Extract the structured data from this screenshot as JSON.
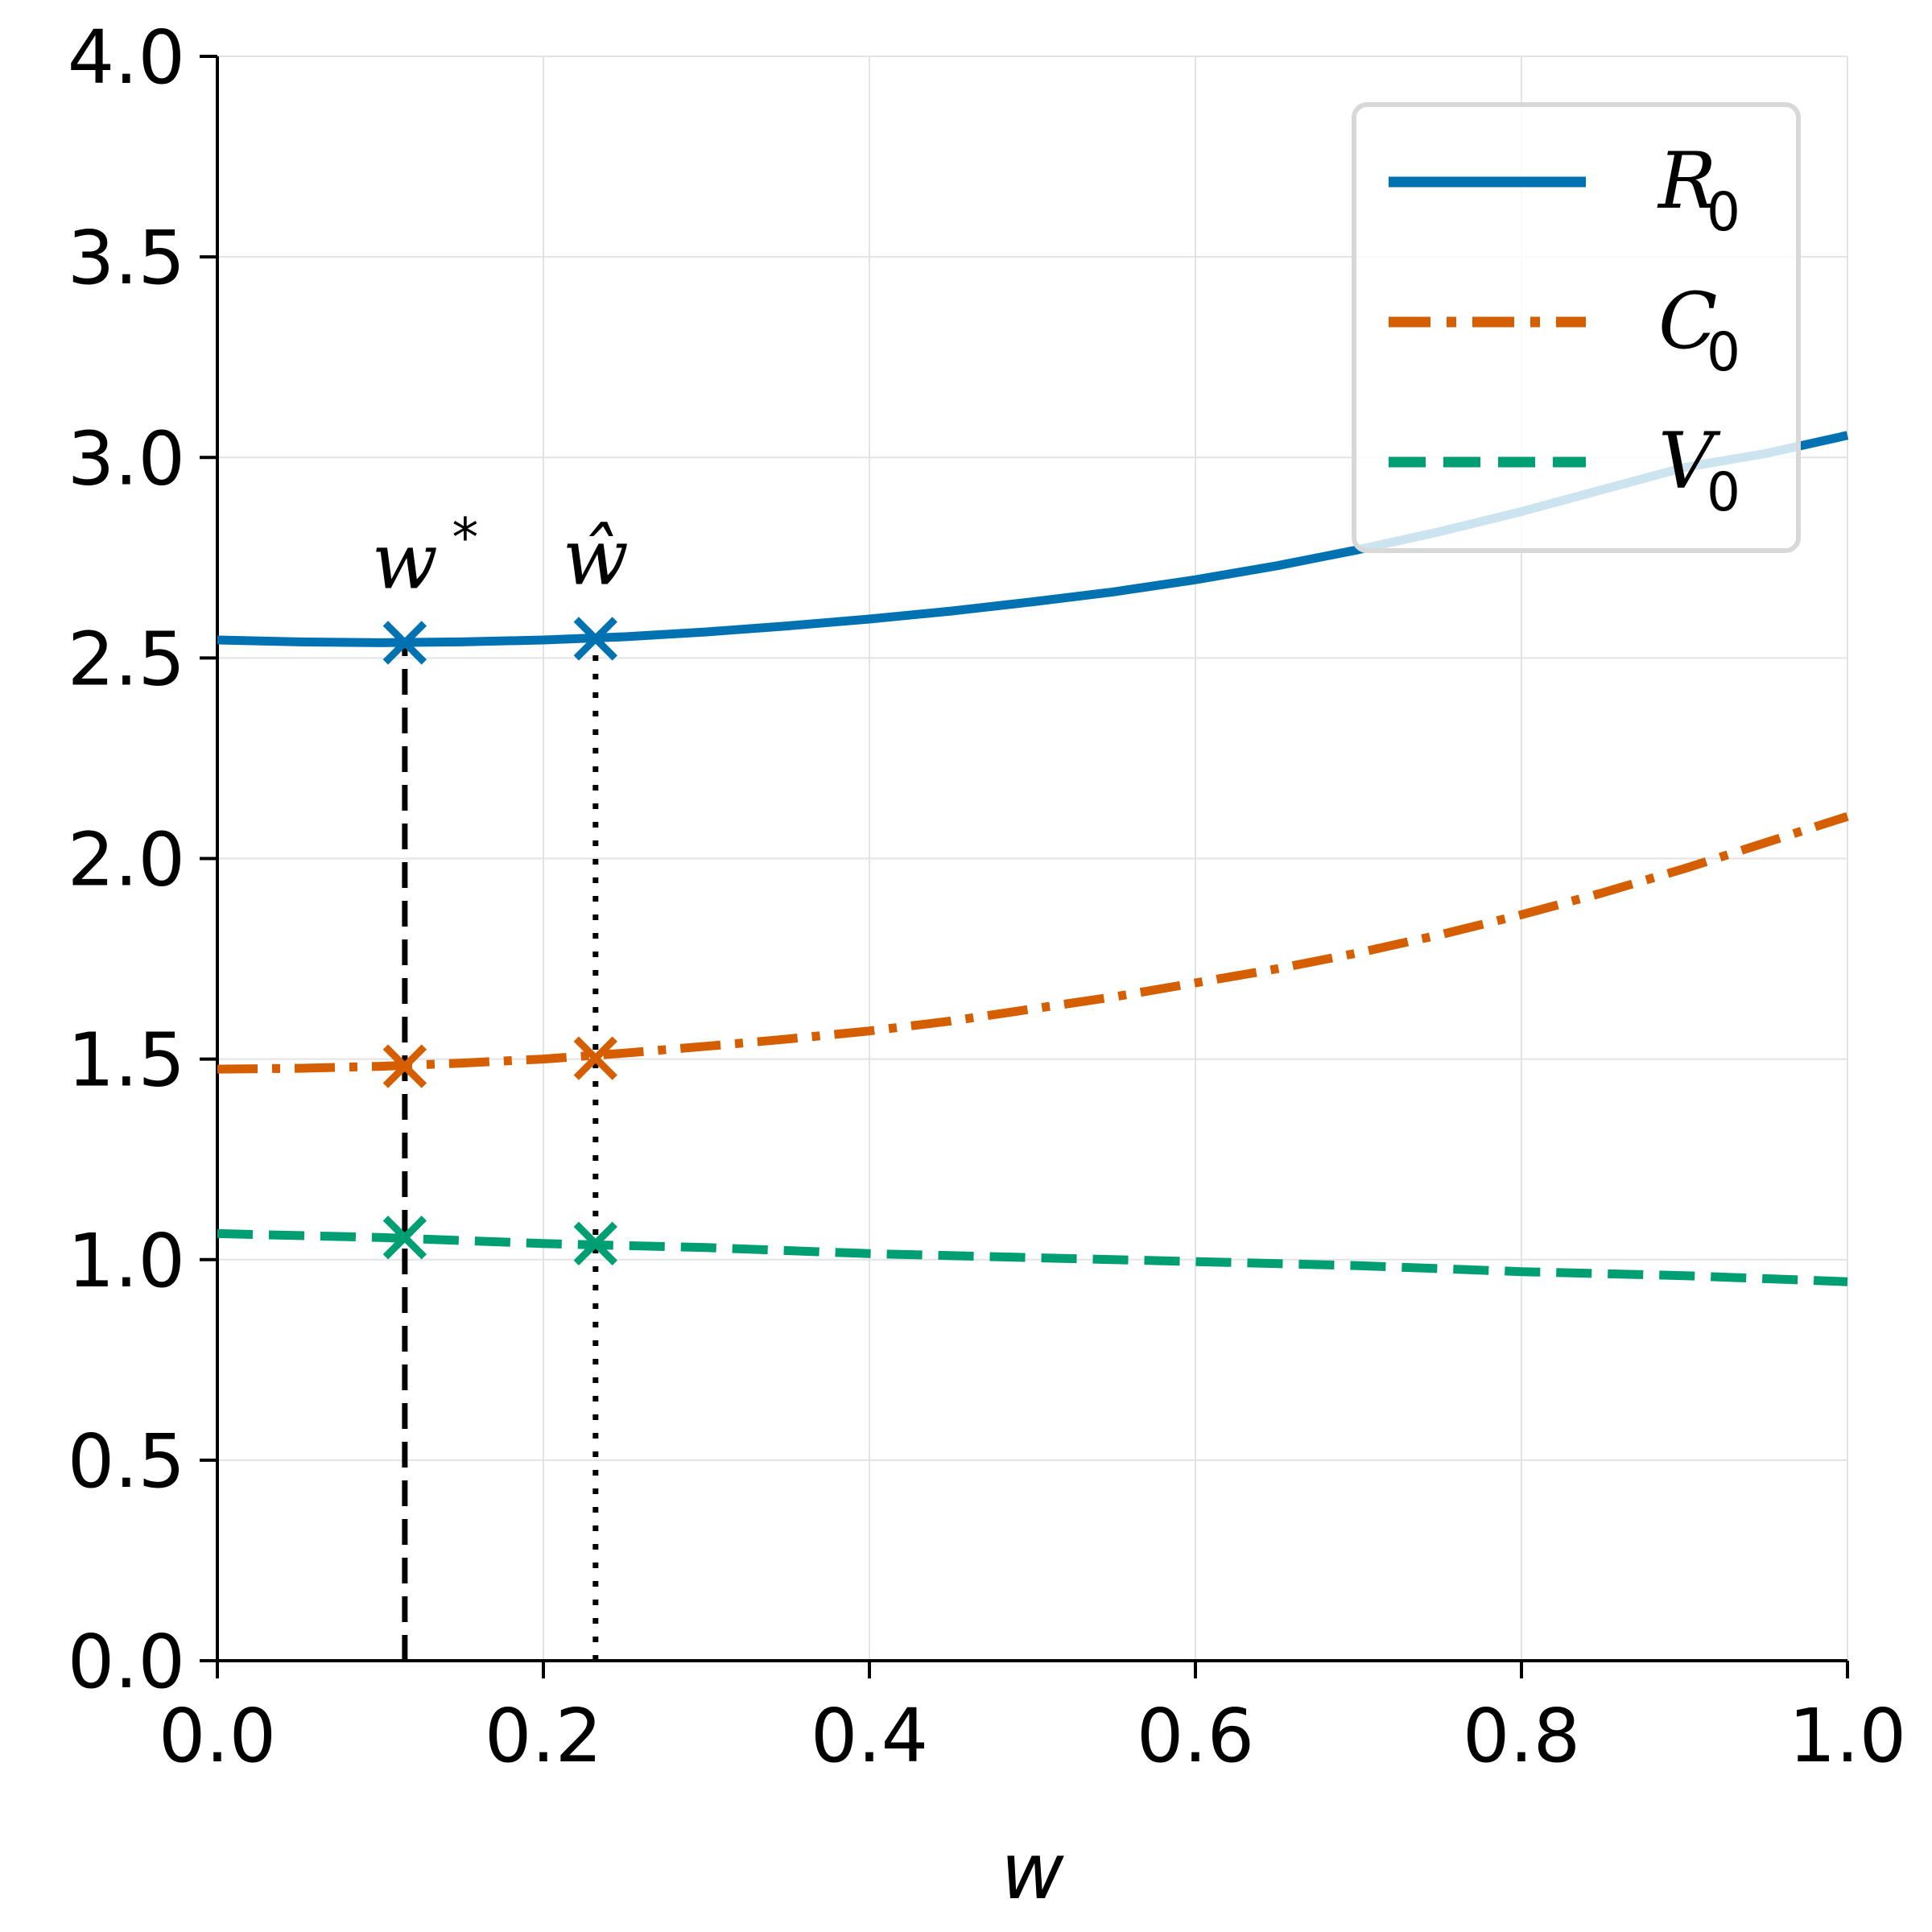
{
  "chart_data": {
    "type": "line",
    "xlabel": "w",
    "ylabel": "",
    "xlim": [
      0.0,
      1.0
    ],
    "ylim": [
      0.0,
      4.0
    ],
    "xticks": [
      "0.0",
      "0.2",
      "0.4",
      "0.6",
      "0.8",
      "1.0"
    ],
    "yticks": [
      "0.0",
      "0.5",
      "1.0",
      "1.5",
      "2.0",
      "2.5",
      "3.0",
      "3.5",
      "4.0"
    ],
    "grid": true,
    "legend_position": "top-right",
    "series": [
      {
        "name": "R",
        "subscript": "0",
        "style": "solid",
        "color": "#0072B2",
        "x": [
          0.0,
          0.05,
          0.1,
          0.15,
          0.2,
          0.25,
          0.3,
          0.35,
          0.4,
          0.45,
          0.5,
          0.55,
          0.6,
          0.65,
          0.7,
          0.75,
          0.8,
          0.85,
          0.9,
          0.95,
          1.0
        ],
        "y": [
          2.545,
          2.54,
          2.538,
          2.54,
          2.545,
          2.553,
          2.565,
          2.58,
          2.597,
          2.617,
          2.64,
          2.665,
          2.695,
          2.73,
          2.77,
          2.815,
          2.865,
          2.92,
          2.975,
          3.01,
          3.055
        ]
      },
      {
        "name": "C",
        "subscript": "0",
        "style": "dashdot",
        "color": "#D55E00",
        "x": [
          0.0,
          0.05,
          0.1,
          0.15,
          0.2,
          0.25,
          0.3,
          0.35,
          0.4,
          0.45,
          0.5,
          0.55,
          0.6,
          0.65,
          0.7,
          0.75,
          0.8,
          0.85,
          0.9,
          0.95,
          1.0
        ],
        "y": [
          1.475,
          1.477,
          1.482,
          1.49,
          1.5,
          1.515,
          1.532,
          1.55,
          1.57,
          1.595,
          1.625,
          1.655,
          1.69,
          1.725,
          1.765,
          1.81,
          1.86,
          1.915,
          1.975,
          2.04,
          2.105
        ]
      },
      {
        "name": "V",
        "subscript": "0",
        "style": "dashed",
        "color": "#009E73",
        "x": [
          0.0,
          0.1,
          0.2,
          0.3,
          0.4,
          0.5,
          0.6,
          0.7,
          0.8,
          0.9,
          1.0
        ],
        "y": [
          1.065,
          1.055,
          1.04,
          1.03,
          1.015,
          1.005,
          0.995,
          0.985,
          0.97,
          0.96,
          0.945
        ]
      }
    ],
    "markers": [
      {
        "label": "w",
        "label_suffix": "*",
        "line_style": "dashed",
        "x": 0.115,
        "y": [
          2.538,
          1.482,
          1.055
        ]
      },
      {
        "label": "ŵ",
        "label_suffix": "",
        "line_style": "dotted",
        "x": 0.232,
        "y": [
          2.548,
          1.502,
          1.04
        ]
      }
    ]
  }
}
